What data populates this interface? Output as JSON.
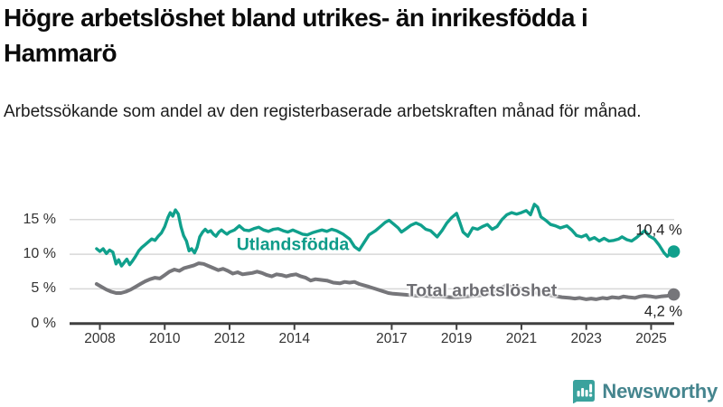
{
  "header": {
    "title_line1": "Högre arbetslöshet bland utrikes- än inrikesfödda i",
    "title_line2": "Hammarö",
    "subtitle": "Arbetssökande som andel av den registerbaserade arbetskraften månad för månad."
  },
  "branding": {
    "logo_text": "Newsworthy",
    "logo_icon": "bar-chart-speech-bubble-icon",
    "icon_color": "#3AA29D",
    "text_color": "#45858E"
  },
  "chart_data": {
    "type": "line",
    "title": "Högre arbetslöshet bland utrikes- än inrikesfödda i Hammarö",
    "subtitle": "Arbetssökande som andel av den registerbaserade arbetskraften månad för månad.",
    "unit": "%",
    "x_range": [
      2007.9,
      2025.7
    ],
    "ylim": [
      0,
      17.5
    ],
    "grid": "horizontal",
    "legend_position": "inline-on-line",
    "yticks": [
      {
        "value": 0,
        "label": "0 %"
      },
      {
        "value": 5,
        "label": "5 %"
      },
      {
        "value": 10,
        "label": "10 %"
      },
      {
        "value": 15,
        "label": "15 %"
      }
    ],
    "xticks": [
      {
        "year": 2008,
        "label": "2008"
      },
      {
        "year": 2010,
        "label": "2010"
      },
      {
        "year": 2012,
        "label": "2012"
      },
      {
        "year": 2014,
        "label": "2014"
      },
      {
        "year": 2017,
        "label": "2017"
      },
      {
        "year": 2019,
        "label": "2019"
      },
      {
        "year": 2021,
        "label": "2021"
      },
      {
        "year": 2023,
        "label": "2023"
      },
      {
        "year": 2025,
        "label": "2025"
      }
    ],
    "series": [
      {
        "name": "Utlandsfödda",
        "color": "#10A08C",
        "line_width": 3.4,
        "end_label": "10,4 %",
        "end_value": 10.4,
        "points": [
          [
            2007.9,
            10.8
          ],
          [
            2008.0,
            10.4
          ],
          [
            2008.1,
            10.8
          ],
          [
            2008.2,
            10.1
          ],
          [
            2008.3,
            10.6
          ],
          [
            2008.4,
            10.3
          ],
          [
            2008.5,
            8.6
          ],
          [
            2008.58,
            9.2
          ],
          [
            2008.67,
            8.3
          ],
          [
            2008.75,
            8.8
          ],
          [
            2008.83,
            9.3
          ],
          [
            2008.92,
            8.5
          ],
          [
            2009.0,
            9.0
          ],
          [
            2009.1,
            9.7
          ],
          [
            2009.2,
            10.5
          ],
          [
            2009.3,
            11.0
          ],
          [
            2009.4,
            11.4
          ],
          [
            2009.5,
            11.8
          ],
          [
            2009.6,
            12.2
          ],
          [
            2009.7,
            12.0
          ],
          [
            2009.8,
            12.6
          ],
          [
            2009.9,
            13.1
          ],
          [
            2010.0,
            14.0
          ],
          [
            2010.1,
            15.3
          ],
          [
            2010.17,
            16.0
          ],
          [
            2010.25,
            15.5
          ],
          [
            2010.33,
            16.4
          ],
          [
            2010.42,
            15.8
          ],
          [
            2010.5,
            14.0
          ],
          [
            2010.58,
            12.7
          ],
          [
            2010.67,
            11.9
          ],
          [
            2010.75,
            10.5
          ],
          [
            2010.83,
            10.8
          ],
          [
            2010.92,
            10.2
          ],
          [
            2011.0,
            11.0
          ],
          [
            2011.08,
            12.5
          ],
          [
            2011.17,
            13.2
          ],
          [
            2011.25,
            13.6
          ],
          [
            2011.33,
            13.2
          ],
          [
            2011.42,
            13.4
          ],
          [
            2011.5,
            12.9
          ],
          [
            2011.58,
            12.6
          ],
          [
            2011.67,
            13.2
          ],
          [
            2011.75,
            13.5
          ],
          [
            2011.83,
            13.2
          ],
          [
            2011.92,
            12.9
          ],
          [
            2012.0,
            13.2
          ],
          [
            2012.15,
            13.5
          ],
          [
            2012.3,
            14.1
          ],
          [
            2012.45,
            13.5
          ],
          [
            2012.6,
            13.4
          ],
          [
            2012.75,
            13.7
          ],
          [
            2012.9,
            13.9
          ],
          [
            2013.05,
            13.5
          ],
          [
            2013.2,
            13.3
          ],
          [
            2013.35,
            13.6
          ],
          [
            2013.5,
            13.7
          ],
          [
            2013.65,
            13.4
          ],
          [
            2013.8,
            13.2
          ],
          [
            2013.95,
            13.5
          ],
          [
            2014.1,
            13.2
          ],
          [
            2014.25,
            12.9
          ],
          [
            2014.4,
            12.8
          ],
          [
            2014.55,
            13.1
          ],
          [
            2014.7,
            13.3
          ],
          [
            2014.85,
            13.5
          ],
          [
            2015.0,
            13.3
          ],
          [
            2015.15,
            13.6
          ],
          [
            2015.3,
            13.4
          ],
          [
            2015.5,
            12.9
          ],
          [
            2015.7,
            12.2
          ],
          [
            2015.85,
            11.1
          ],
          [
            2016.0,
            10.6
          ],
          [
            2016.15,
            11.7
          ],
          [
            2016.3,
            12.8
          ],
          [
            2016.5,
            13.4
          ],
          [
            2016.65,
            14.0
          ],
          [
            2016.8,
            14.6
          ],
          [
            2016.92,
            14.9
          ],
          [
            2017.05,
            14.4
          ],
          [
            2017.2,
            13.8
          ],
          [
            2017.3,
            13.2
          ],
          [
            2017.45,
            13.7
          ],
          [
            2017.6,
            14.2
          ],
          [
            2017.75,
            14.5
          ],
          [
            2017.9,
            14.2
          ],
          [
            2018.05,
            13.6
          ],
          [
            2018.2,
            13.4
          ],
          [
            2018.4,
            12.5
          ],
          [
            2018.55,
            13.4
          ],
          [
            2018.7,
            14.5
          ],
          [
            2018.85,
            15.3
          ],
          [
            2019.0,
            15.9
          ],
          [
            2019.1,
            14.6
          ],
          [
            2019.2,
            13.2
          ],
          [
            2019.35,
            12.6
          ],
          [
            2019.5,
            13.8
          ],
          [
            2019.65,
            13.6
          ],
          [
            2019.8,
            14.0
          ],
          [
            2019.95,
            14.3
          ],
          [
            2020.1,
            13.6
          ],
          [
            2020.25,
            14.0
          ],
          [
            2020.4,
            15.0
          ],
          [
            2020.55,
            15.7
          ],
          [
            2020.7,
            16.0
          ],
          [
            2020.85,
            15.8
          ],
          [
            2021.0,
            16.0
          ],
          [
            2021.15,
            16.3
          ],
          [
            2021.28,
            15.7
          ],
          [
            2021.4,
            17.2
          ],
          [
            2021.5,
            16.8
          ],
          [
            2021.6,
            15.4
          ],
          [
            2021.75,
            14.9
          ],
          [
            2021.9,
            14.3
          ],
          [
            2022.05,
            14.1
          ],
          [
            2022.2,
            13.8
          ],
          [
            2022.4,
            14.1
          ],
          [
            2022.55,
            13.5
          ],
          [
            2022.7,
            12.7
          ],
          [
            2022.85,
            12.5
          ],
          [
            2023.0,
            12.8
          ],
          [
            2023.1,
            12.1
          ],
          [
            2023.25,
            12.4
          ],
          [
            2023.4,
            11.9
          ],
          [
            2023.55,
            12.3
          ],
          [
            2023.7,
            11.9
          ],
          [
            2023.85,
            12.0
          ],
          [
            2024.0,
            12.2
          ],
          [
            2024.1,
            12.5
          ],
          [
            2024.25,
            12.1
          ],
          [
            2024.4,
            11.9
          ],
          [
            2024.55,
            12.4
          ],
          [
            2024.7,
            13.0
          ],
          [
            2024.8,
            13.4
          ],
          [
            2024.95,
            12.6
          ],
          [
            2025.1,
            12.2
          ],
          [
            2025.25,
            11.3
          ],
          [
            2025.4,
            10.2
          ],
          [
            2025.5,
            9.7
          ],
          [
            2025.58,
            10.1
          ],
          [
            2025.7,
            10.4
          ]
        ]
      },
      {
        "name": "Total arbetslöshet",
        "color": "#76767A",
        "line_width": 4,
        "end_label": "4,2 %",
        "end_value": 4.2,
        "points": [
          [
            2007.9,
            5.7
          ],
          [
            2008.05,
            5.3
          ],
          [
            2008.2,
            4.9
          ],
          [
            2008.35,
            4.6
          ],
          [
            2008.5,
            4.4
          ],
          [
            2008.65,
            4.4
          ],
          [
            2008.8,
            4.6
          ],
          [
            2008.95,
            4.9
          ],
          [
            2009.1,
            5.3
          ],
          [
            2009.25,
            5.7
          ],
          [
            2009.4,
            6.1
          ],
          [
            2009.55,
            6.4
          ],
          [
            2009.7,
            6.6
          ],
          [
            2009.85,
            6.5
          ],
          [
            2010.0,
            7.0
          ],
          [
            2010.15,
            7.5
          ],
          [
            2010.3,
            7.8
          ],
          [
            2010.45,
            7.6
          ],
          [
            2010.6,
            8.0
          ],
          [
            2010.75,
            8.2
          ],
          [
            2010.9,
            8.4
          ],
          [
            2011.05,
            8.7
          ],
          [
            2011.2,
            8.6
          ],
          [
            2011.35,
            8.3
          ],
          [
            2011.5,
            8.0
          ],
          [
            2011.65,
            7.7
          ],
          [
            2011.8,
            7.9
          ],
          [
            2011.95,
            7.6
          ],
          [
            2012.1,
            7.2
          ],
          [
            2012.25,
            7.4
          ],
          [
            2012.4,
            7.1
          ],
          [
            2012.55,
            7.2
          ],
          [
            2012.7,
            7.3
          ],
          [
            2012.85,
            7.5
          ],
          [
            2013.0,
            7.3
          ],
          [
            2013.15,
            7.0
          ],
          [
            2013.3,
            6.8
          ],
          [
            2013.45,
            7.1
          ],
          [
            2013.6,
            7.0
          ],
          [
            2013.75,
            6.8
          ],
          [
            2013.9,
            7.0
          ],
          [
            2014.05,
            7.1
          ],
          [
            2014.2,
            6.8
          ],
          [
            2014.35,
            6.6
          ],
          [
            2014.5,
            6.2
          ],
          [
            2014.65,
            6.4
          ],
          [
            2014.8,
            6.3
          ],
          [
            2015.0,
            6.2
          ],
          [
            2015.2,
            5.9
          ],
          [
            2015.4,
            5.8
          ],
          [
            2015.55,
            6.0
          ],
          [
            2015.7,
            5.9
          ],
          [
            2015.85,
            6.0
          ],
          [
            2016.0,
            5.7
          ],
          [
            2016.15,
            5.5
          ],
          [
            2016.3,
            5.3
          ],
          [
            2016.5,
            5.0
          ],
          [
            2016.7,
            4.7
          ],
          [
            2016.9,
            4.4
          ],
          [
            2017.05,
            4.3
          ],
          [
            2017.3,
            4.2
          ],
          [
            2017.55,
            4.1
          ],
          [
            2017.8,
            4.0
          ],
          [
            2018.05,
            4.0
          ],
          [
            2018.3,
            3.9
          ],
          [
            2018.55,
            3.9
          ],
          [
            2018.8,
            3.8
          ],
          [
            2019.05,
            3.8
          ],
          [
            2019.3,
            3.9
          ],
          [
            2019.55,
            4.0
          ],
          [
            2019.8,
            4.1
          ],
          [
            2020.05,
            4.4
          ],
          [
            2020.3,
            5.0
          ],
          [
            2020.5,
            5.4
          ],
          [
            2020.75,
            5.3
          ],
          [
            2021.0,
            5.0
          ],
          [
            2021.25,
            4.7
          ],
          [
            2021.5,
            4.4
          ],
          [
            2021.75,
            4.2
          ],
          [
            2022.0,
            4.0
          ],
          [
            2022.25,
            3.8
          ],
          [
            2022.5,
            3.7
          ],
          [
            2022.65,
            3.6
          ],
          [
            2022.8,
            3.7
          ],
          [
            2023.0,
            3.5
          ],
          [
            2023.15,
            3.6
          ],
          [
            2023.3,
            3.5
          ],
          [
            2023.5,
            3.7
          ],
          [
            2023.65,
            3.6
          ],
          [
            2023.8,
            3.8
          ],
          [
            2024.0,
            3.7
          ],
          [
            2024.15,
            3.9
          ],
          [
            2024.3,
            3.8
          ],
          [
            2024.5,
            3.7
          ],
          [
            2024.65,
            3.9
          ],
          [
            2024.8,
            4.0
          ],
          [
            2025.0,
            3.9
          ],
          [
            2025.15,
            3.8
          ],
          [
            2025.3,
            3.9
          ],
          [
            2025.5,
            4.0
          ],
          [
            2025.7,
            4.2
          ]
        ]
      }
    ],
    "colors": {
      "gridline": "#D8D8D8",
      "axis": "#3F3F3F",
      "tick_text": "#333333"
    }
  }
}
